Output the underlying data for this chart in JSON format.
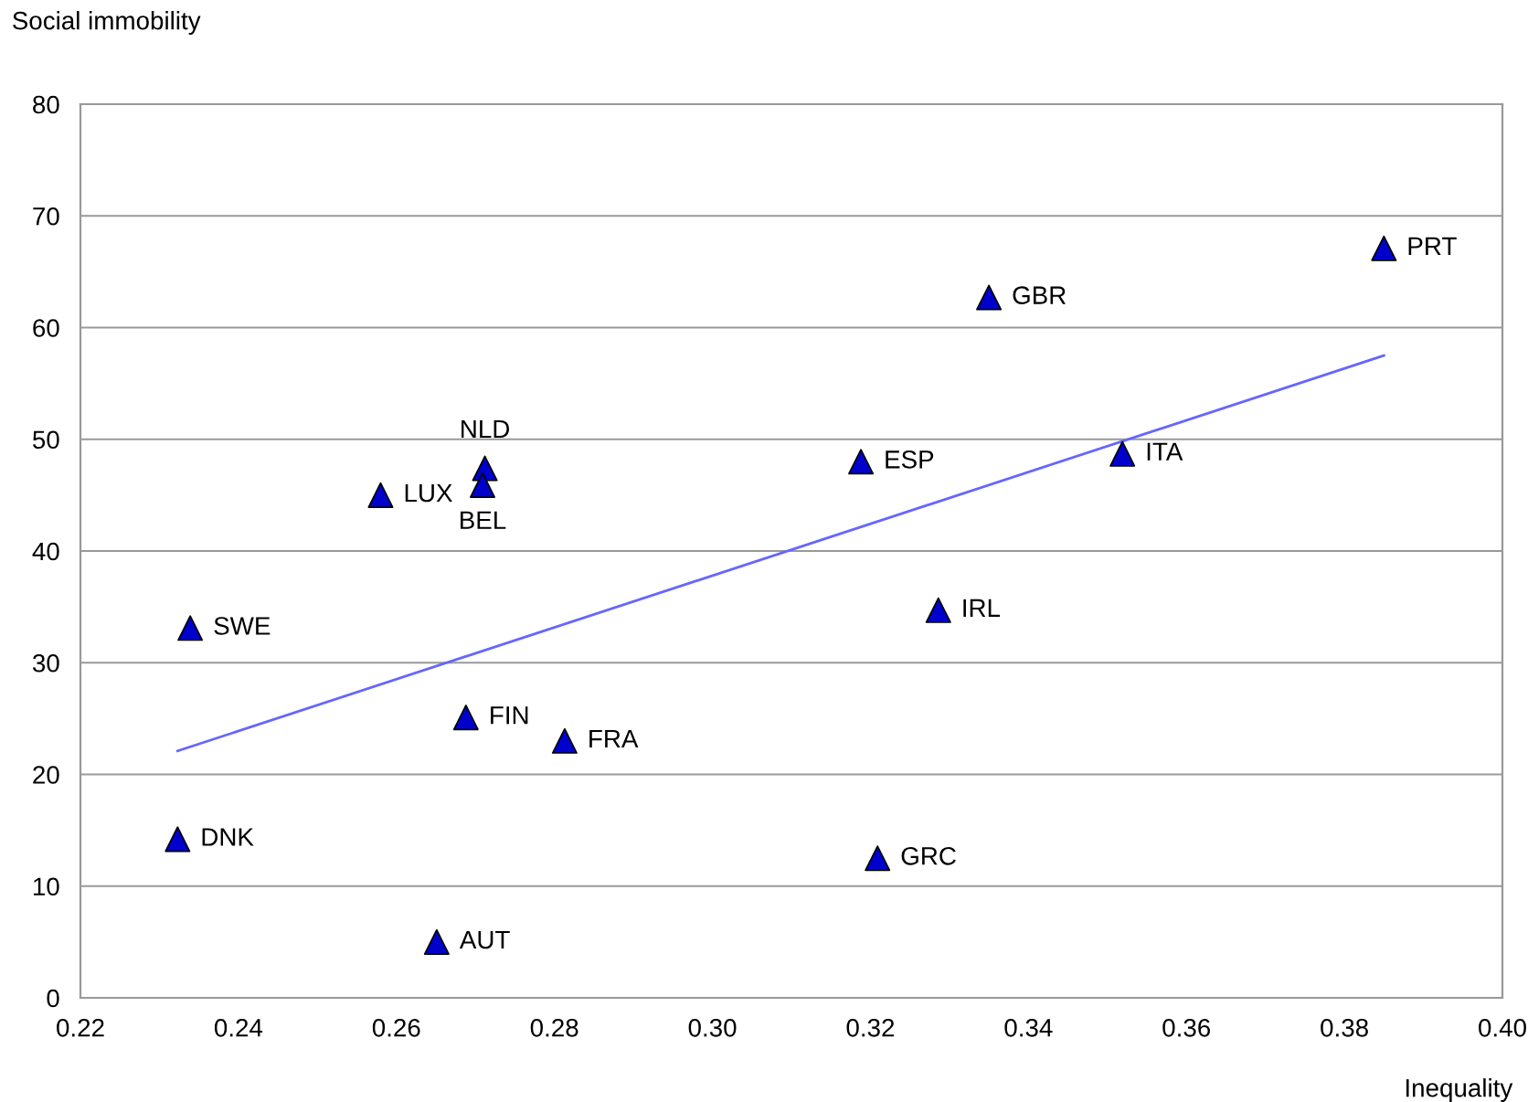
{
  "chart_data": {
    "type": "scatter",
    "xlabel": "Inequality",
    "ylabel": "Social immobility",
    "xlim": [
      0.22,
      0.4
    ],
    "ylim": [
      0,
      80
    ],
    "xticks": [
      {
        "value": 0.22,
        "label": "0.22"
      },
      {
        "value": 0.24,
        "label": "0.24"
      },
      {
        "value": 0.26,
        "label": "0.26"
      },
      {
        "value": 0.28,
        "label": "0.28"
      },
      {
        "value": 0.3,
        "label": "0.30"
      },
      {
        "value": 0.32,
        "label": "0.32"
      },
      {
        "value": 0.34,
        "label": "0.34"
      },
      {
        "value": 0.36,
        "label": "0.36"
      },
      {
        "value": 0.38,
        "label": "0.38"
      },
      {
        "value": 0.4,
        "label": "0.40"
      }
    ],
    "yticks": [
      0,
      10,
      20,
      30,
      40,
      50,
      60,
      70,
      80
    ],
    "grid": "y",
    "marker": "triangle",
    "series": [
      {
        "type": "scatter",
        "color": "#0000cc",
        "x": [
          0.2323,
          0.2339,
          0.258,
          0.2712,
          0.2709,
          0.2651,
          0.2688,
          0.2813,
          0.3188,
          0.3209,
          0.3286,
          0.335,
          0.3519,
          0.385
        ],
        "values": [
          14.2,
          33.1,
          45.0,
          47.4,
          45.9,
          5.0,
          25.1,
          23.0,
          48.0,
          12.5,
          34.7,
          62.7,
          48.7,
          67.1
        ]
      },
      {
        "type": "line",
        "color": "#6666ff",
        "marker": "none",
        "x": [
          0.2323,
          0.385
        ],
        "values": [
          22.1,
          57.5
        ]
      }
    ],
    "annotations": [
      {
        "text": "DNK",
        "x": 0.2323,
        "y": 14.2
      },
      {
        "text": "SWE",
        "x": 0.2339,
        "y": 33.1
      },
      {
        "text": "LUX",
        "x": 0.258,
        "y": 45.0
      },
      {
        "text": "NLD",
        "x": 0.2712,
        "y": 47.4
      },
      {
        "text": "BEL",
        "x": 0.2709,
        "y": 45.9
      },
      {
        "text": "AUT",
        "x": 0.2651,
        "y": 5.0
      },
      {
        "text": "FIN",
        "x": 0.2688,
        "y": 25.1
      },
      {
        "text": "FRA",
        "x": 0.2813,
        "y": 23.0
      },
      {
        "text": "ESP",
        "x": 0.3188,
        "y": 48.0
      },
      {
        "text": "GRC",
        "x": 0.3209,
        "y": 12.5
      },
      {
        "text": "IRL",
        "x": 0.3286,
        "y": 34.7
      },
      {
        "text": "GBR",
        "x": 0.335,
        "y": 62.7
      },
      {
        "text": "ITA",
        "x": 0.3519,
        "y": 48.7
      },
      {
        "text": "PRT",
        "x": 0.385,
        "y": 67.1
      }
    ]
  }
}
